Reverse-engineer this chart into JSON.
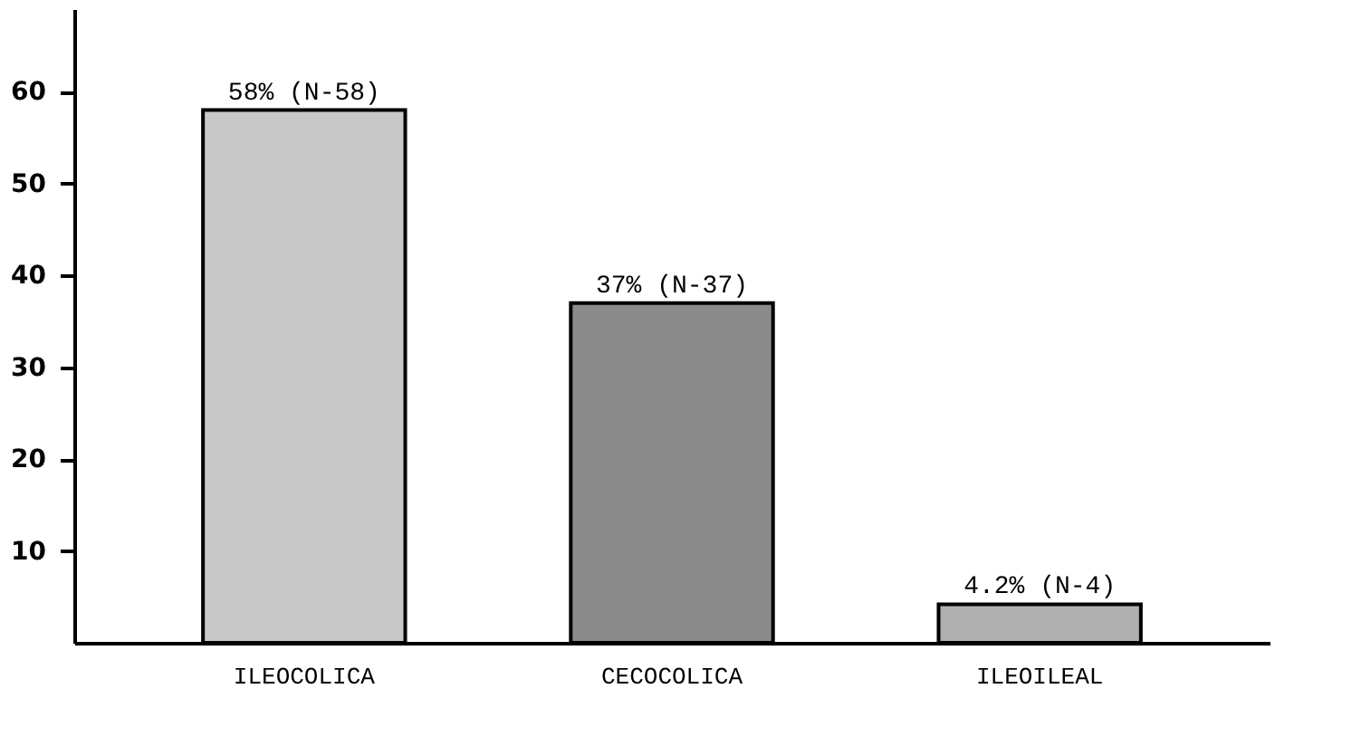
{
  "chart_data": {
    "type": "bar",
    "categories": [
      "ILEOCOLICA",
      "CECOCOLICA",
      "ILEOILEAL"
    ],
    "values": [
      58,
      37,
      4.2
    ],
    "colors": [
      "#c8c8c8",
      "#8a8a8a",
      "#b0b0b0"
    ],
    "value_labels": [
      "58% (N-58)",
      "37% (N-37)",
      "4.2% (N-4)"
    ],
    "ylim": [
      0,
      69
    ],
    "yticks": [
      10,
      20,
      30,
      40,
      50,
      60
    ],
    "grid": false
  }
}
